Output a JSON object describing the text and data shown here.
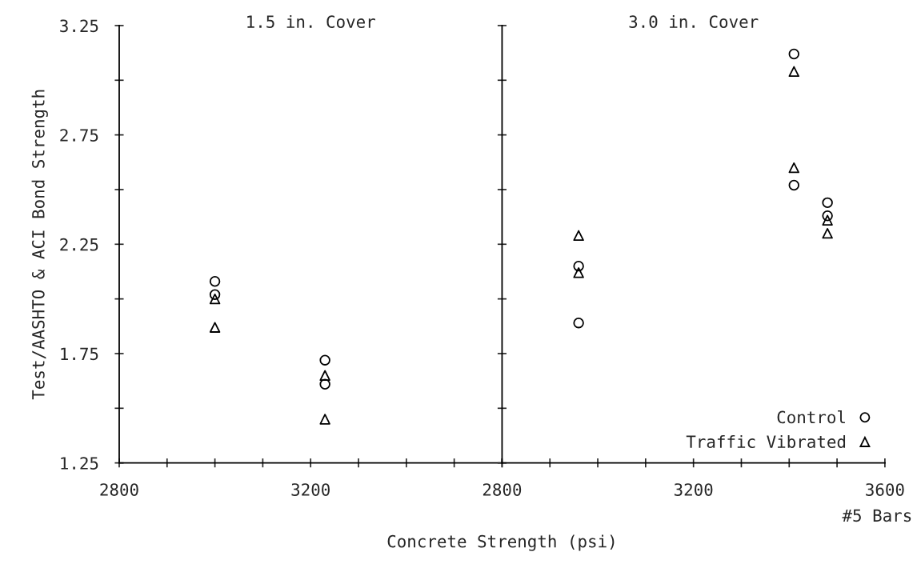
{
  "chart_data": [
    {
      "type": "scatter",
      "title": "1.5 in. Cover",
      "ylabel": "Test/AASHTO & ACI Bond Strength",
      "xlim": [
        2800,
        3600
      ],
      "ylim": [
        1.25,
        3.25
      ],
      "xticks": [
        2800,
        {
          "value": 2900,
          "label": null
        },
        {
          "value": 3000,
          "label": null
        },
        {
          "value": 3100,
          "label": null
        },
        3200,
        {
          "value": 3300,
          "label": null
        },
        {
          "value": 3400,
          "label": null
        },
        {
          "value": 3500,
          "label": null
        },
        {
          "value": 3600,
          "label": null
        }
      ],
      "yticks": [
        1.25,
        {
          "value": 1.5,
          "label": null
        },
        1.75,
        {
          "value": 2.0,
          "label": null
        },
        2.25,
        {
          "value": 2.5,
          "label": null
        },
        2.75,
        {
          "value": 3.0,
          "label": null
        },
        3.25
      ],
      "grid": false,
      "legend": false,
      "series": [
        {
          "color": "#000000",
          "marker": "circle",
          "x": [
            3000,
            3000,
            3230,
            3230
          ],
          "values": [
            2.08,
            2.02,
            1.72,
            1.61
          ]
        },
        {
          "color": "#000000",
          "marker": "triangle",
          "x": [
            3000,
            3000,
            3230,
            3230
          ],
          "values": [
            2.0,
            1.87,
            1.65,
            1.45
          ]
        }
      ]
    },
    {
      "type": "scatter",
      "title": "3.0 in. Cover",
      "xlabel": "Concrete Strength (psi)",
      "annotations": [
        "#5 Bars"
      ],
      "xlim": [
        2800,
        3600
      ],
      "ylim": [
        1.25,
        3.25
      ],
      "tick_labels": "x",
      "xticks": [
        2800,
        {
          "value": 2900,
          "label": null
        },
        {
          "value": 3000,
          "label": null
        },
        {
          "value": 3100,
          "label": null
        },
        3200,
        {
          "value": 3300,
          "label": null
        },
        {
          "value": 3400,
          "label": null
        },
        {
          "value": 3500,
          "label": null
        },
        3600
      ],
      "yticks": [
        1.25,
        1.5,
        1.75,
        2.0,
        2.25,
        2.5,
        2.75,
        3.0,
        3.25
      ],
      "grid": false,
      "legend": "bottom right",
      "series": [
        {
          "name": "Control",
          "color": "#000000",
          "marker": "circle",
          "x": [
            2960,
            2960,
            3410,
            3410,
            3480,
            3480
          ],
          "values": [
            2.15,
            1.89,
            3.12,
            2.52,
            2.44,
            2.38
          ]
        },
        {
          "name": "Traffic Vibrated",
          "color": "#000000",
          "marker": "triangle",
          "x": [
            2960,
            2960,
            3410,
            3410,
            3480,
            3480
          ],
          "values": [
            2.29,
            2.12,
            3.04,
            2.6,
            2.36,
            2.3
          ]
        }
      ]
    }
  ]
}
